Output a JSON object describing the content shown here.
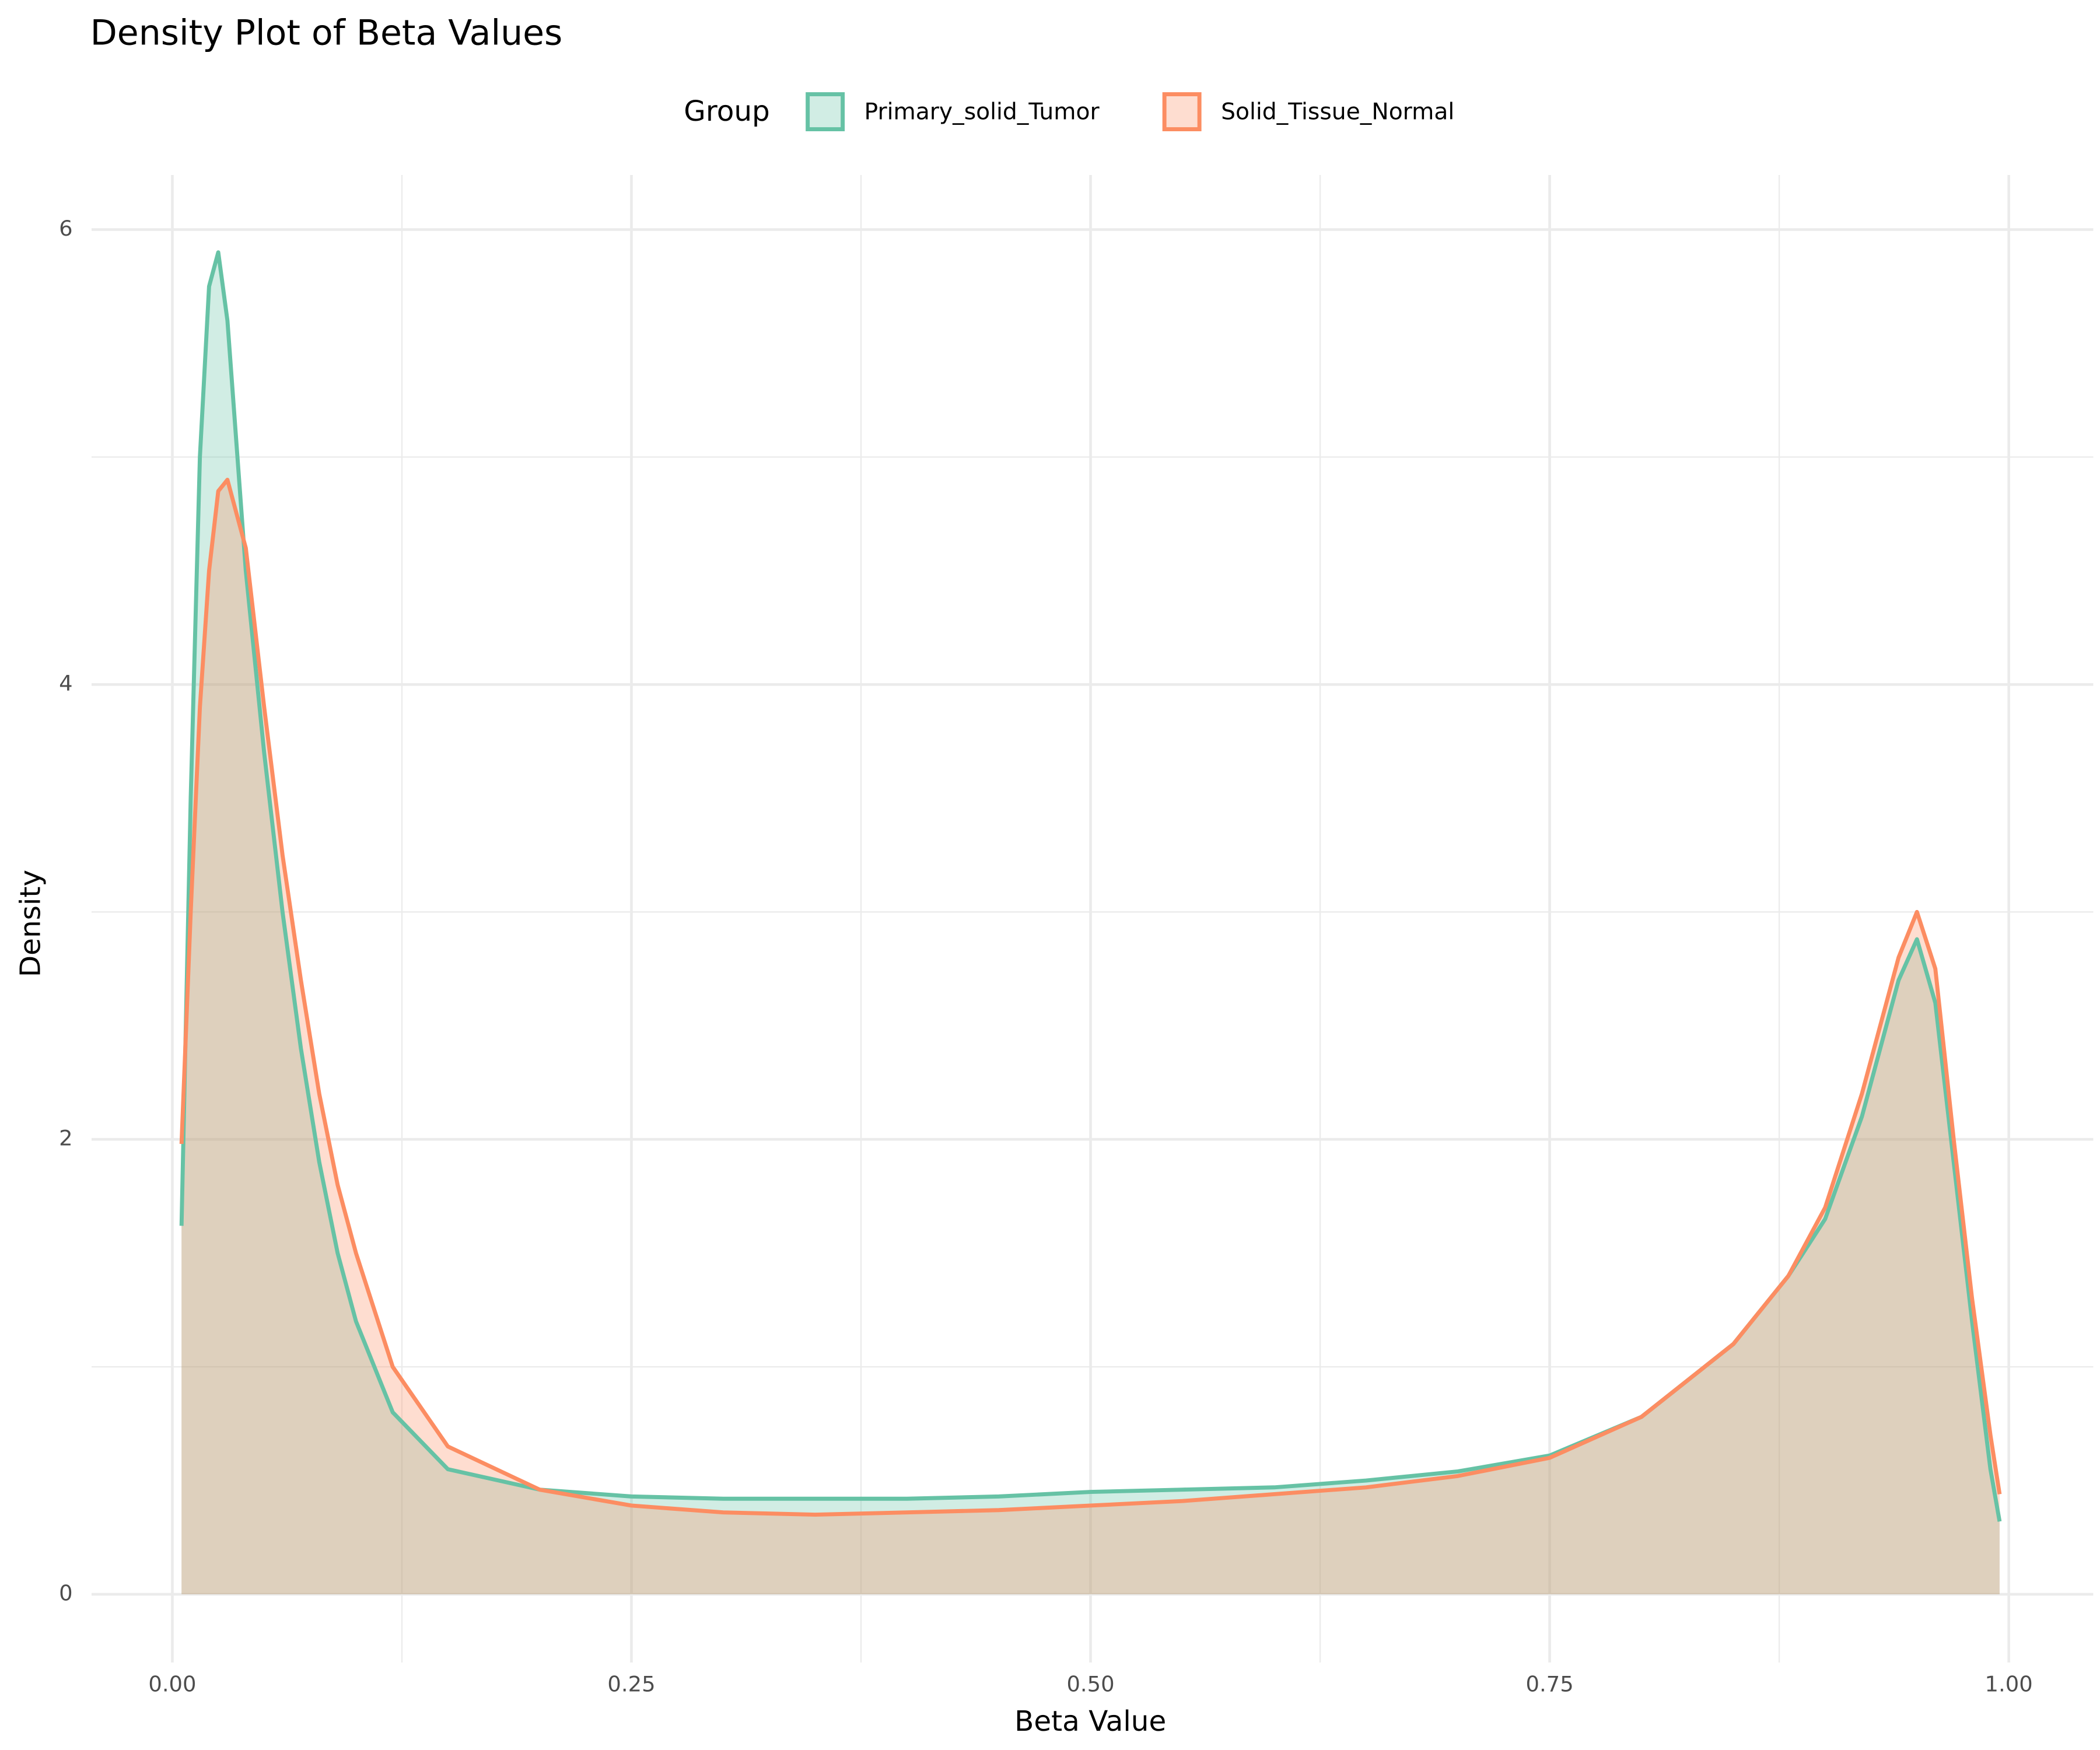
{
  "chart_data": {
    "type": "density",
    "title": "Density Plot of Beta Values",
    "x_label": "Beta Value",
    "y_label": "Density",
    "legend_title": "Group",
    "legend_position": "top",
    "grid": true,
    "xlim": [
      -0.044,
      1.046
    ],
    "ylim": [
      -0.3,
      6.24
    ],
    "xticks": [
      {
        "value": 0,
        "label": "0.00"
      },
      {
        "value": 0.25,
        "label": "0.25"
      },
      {
        "value": 0.5,
        "label": "0.50"
      },
      {
        "value": 0.75,
        "label": "0.75"
      },
      {
        "value": 1,
        "label": "1.00"
      }
    ],
    "yticks": [
      0,
      2,
      4,
      6
    ],
    "x_minor_grid": [
      0.125,
      0.375,
      0.625,
      0.875
    ],
    "y_minor_grid": [
      1,
      3,
      5
    ],
    "x": [
      0.005,
      0.01,
      0.015,
      0.02,
      0.025,
      0.03,
      0.04,
      0.05,
      0.06,
      0.07,
      0.08,
      0.09,
      0.1,
      0.12,
      0.15,
      0.2,
      0.25,
      0.3,
      0.35,
      0.4,
      0.45,
      0.5,
      0.55,
      0.6,
      0.65,
      0.7,
      0.75,
      0.8,
      0.85,
      0.88,
      0.9,
      0.92,
      0.94,
      0.95,
      0.96,
      0.97,
      0.98,
      0.99,
      0.995
    ],
    "series": [
      {
        "name": "Primary_solid_Tumor",
        "color": "#66c2a5",
        "values": [
          1.62,
          3.5,
          5.0,
          5.75,
          5.9,
          5.6,
          4.5,
          3.7,
          3.0,
          2.4,
          1.9,
          1.5,
          1.2,
          0.8,
          0.55,
          0.46,
          0.43,
          0.42,
          0.42,
          0.42,
          0.43,
          0.45,
          0.46,
          0.47,
          0.5,
          0.54,
          0.61,
          0.78,
          1.1,
          1.4,
          1.65,
          2.1,
          2.7,
          2.88,
          2.6,
          1.9,
          1.2,
          0.55,
          0.32
        ]
      },
      {
        "name": "Solid_Tissue_Normal",
        "color": "#fc8d62",
        "values": [
          1.98,
          3.0,
          3.9,
          4.5,
          4.85,
          4.9,
          4.6,
          3.9,
          3.25,
          2.7,
          2.2,
          1.8,
          1.5,
          1.0,
          0.65,
          0.46,
          0.39,
          0.36,
          0.35,
          0.36,
          0.37,
          0.39,
          0.41,
          0.44,
          0.47,
          0.52,
          0.6,
          0.78,
          1.1,
          1.4,
          1.7,
          2.2,
          2.8,
          3.0,
          2.75,
          2.0,
          1.3,
          0.7,
          0.44
        ]
      }
    ]
  }
}
